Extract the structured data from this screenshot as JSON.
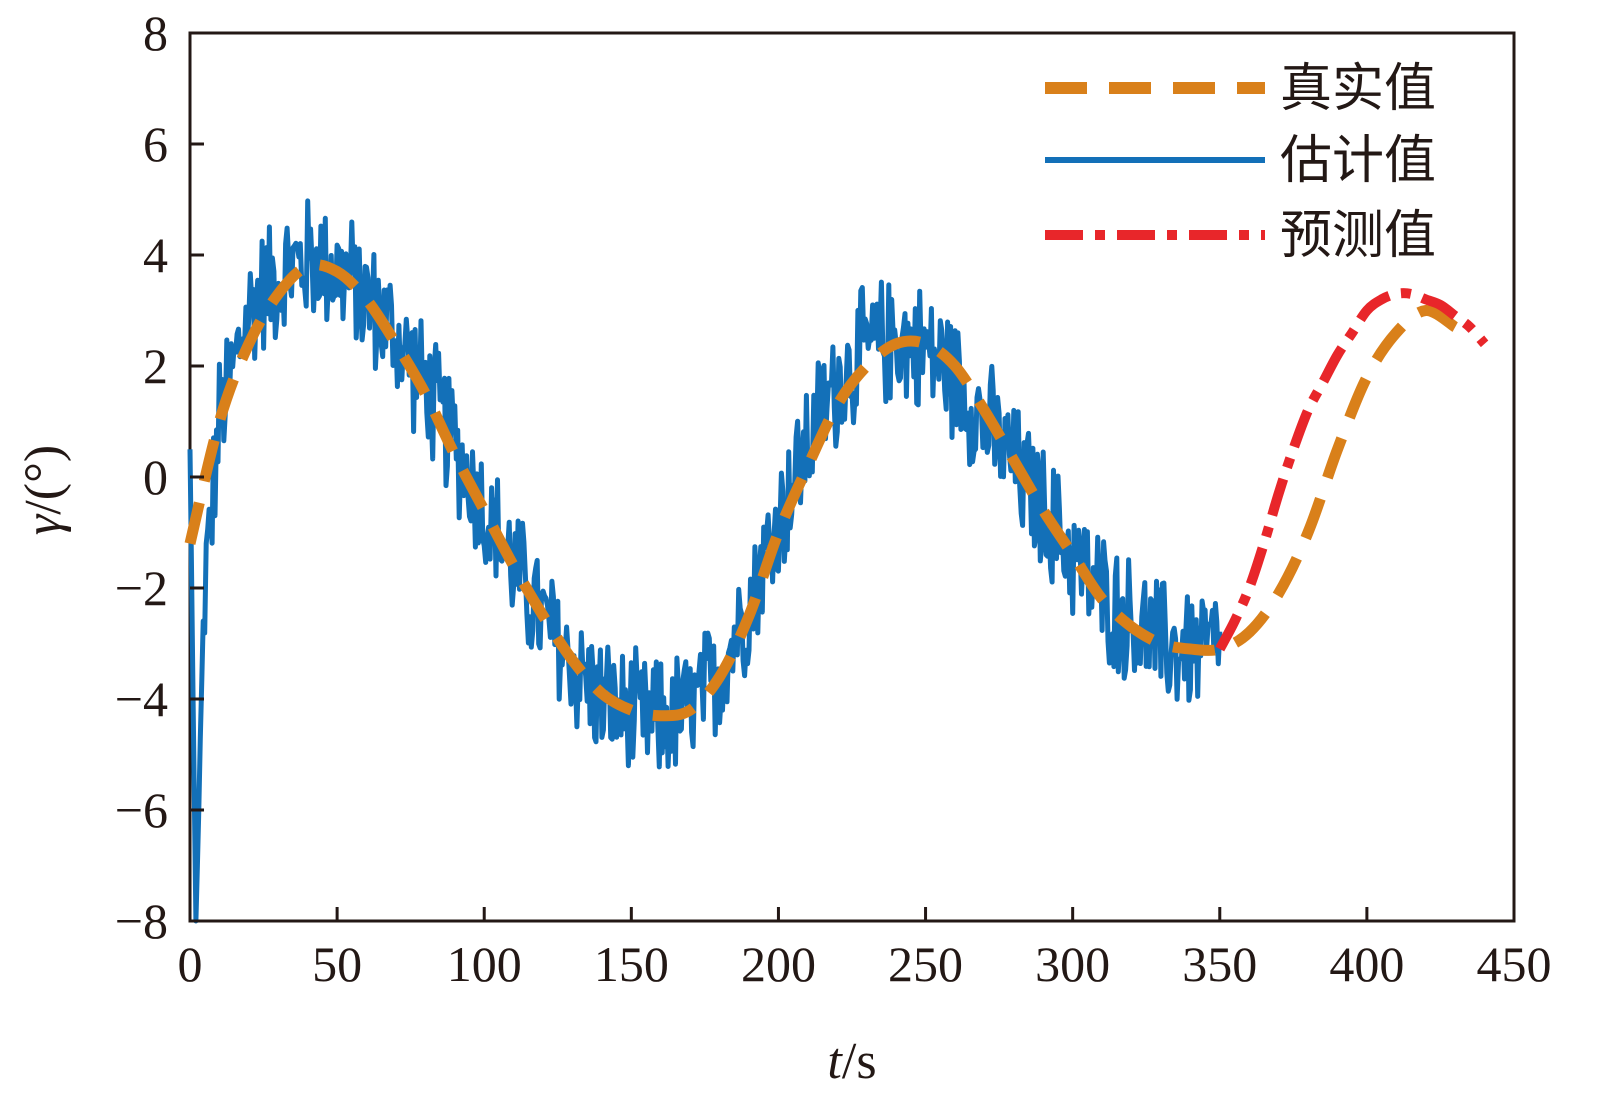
{
  "chart_data": {
    "type": "line",
    "title": "",
    "xlabel_var": "t",
    "xlabel_unit": "/s",
    "ylabel_var": "γ",
    "ylabel_unit": "/(°)",
    "xlim": [
      0,
      450
    ],
    "ylim": [
      -8,
      8
    ],
    "xticks": [
      0,
      50,
      100,
      150,
      200,
      250,
      300,
      350,
      400,
      450
    ],
    "yticks": [
      -8,
      -6,
      -4,
      -2,
      0,
      2,
      4,
      6,
      8
    ],
    "xtick_labels": [
      "0",
      "50",
      "100",
      "150",
      "200",
      "250",
      "300",
      "350",
      "400",
      "450"
    ],
    "ytick_labels": [
      "−8",
      "−6",
      "−4",
      "−2",
      "0",
      "2",
      "4",
      "6",
      "8"
    ],
    "grid": false,
    "legend_position": "top-right",
    "series": [
      {
        "name": "真实值",
        "style": "dashed",
        "color": "#D9801A",
        "x": [
          0,
          10,
          20,
          30,
          40,
          50,
          60,
          70,
          80,
          90,
          100,
          110,
          120,
          130,
          140,
          150,
          160,
          170,
          180,
          190,
          200,
          210,
          220,
          230,
          240,
          250,
          260,
          270,
          280,
          290,
          300,
          310,
          320,
          330,
          340,
          350,
          360,
          370,
          380,
          390,
          400,
          410,
          420,
          430
        ],
        "y": [
          -1.2,
          1.0,
          2.4,
          3.3,
          3.8,
          3.7,
          3.2,
          2.4,
          1.5,
          0.4,
          -0.6,
          -1.6,
          -2.5,
          -3.3,
          -3.9,
          -4.2,
          -4.3,
          -4.2,
          -3.6,
          -2.5,
          -1.0,
          0.2,
          1.3,
          2.0,
          2.4,
          2.4,
          2.0,
          1.2,
          0.3,
          -0.6,
          -1.4,
          -2.2,
          -2.7,
          -3.0,
          -3.1,
          -3.1,
          -2.8,
          -2.1,
          -1.0,
          0.5,
          1.8,
          2.6,
          3.0,
          2.7
        ]
      },
      {
        "name": "估计值",
        "style": "solid",
        "color": "#1370B8",
        "x": [
          0,
          2,
          5,
          10,
          15,
          20,
          25,
          30,
          35,
          40,
          45,
          50,
          55,
          60,
          65,
          70,
          75,
          80,
          85,
          90,
          95,
          100,
          105,
          110,
          115,
          120,
          125,
          130,
          135,
          140,
          145,
          150,
          155,
          160,
          165,
          170,
          175,
          180,
          185,
          190,
          195,
          200,
          205,
          210,
          215,
          220,
          225,
          230,
          235,
          240,
          245,
          250,
          255,
          260,
          265,
          270,
          275,
          280,
          285,
          290,
          295,
          300,
          305,
          310,
          315,
          320,
          325,
          330,
          335,
          340,
          345,
          350
        ],
        "y": [
          0.5,
          -8.0,
          -2.0,
          1.0,
          2.0,
          3.0,
          3.4,
          3.6,
          3.8,
          3.9,
          3.9,
          3.7,
          3.5,
          3.2,
          2.9,
          2.5,
          2.1,
          1.6,
          1.1,
          0.6,
          0.0,
          -0.6,
          -1.1,
          -1.6,
          -2.1,
          -2.6,
          -3.0,
          -3.4,
          -3.7,
          -4.0,
          -4.2,
          -4.3,
          -4.4,
          -4.4,
          -4.3,
          -4.2,
          -3.9,
          -3.5,
          -2.9,
          -2.2,
          -1.5,
          -0.8,
          -0.1,
          0.6,
          1.2,
          1.7,
          2.0,
          2.3,
          2.4,
          2.5,
          2.4,
          2.3,
          2.1,
          1.8,
          1.4,
          1.0,
          0.6,
          0.2,
          -0.2,
          -0.6,
          -1.0,
          -1.4,
          -1.8,
          -2.1,
          -2.4,
          -2.6,
          -2.8,
          -3.0,
          -3.1,
          -3.1,
          -3.1,
          -3.1
        ],
        "noise_amplitude": 1.3
      },
      {
        "name": "预测值",
        "style": "dash-dot",
        "color": "#E8262A",
        "x": [
          350,
          355,
          360,
          365,
          370,
          375,
          380,
          385,
          390,
          395,
          400,
          405,
          410,
          415,
          420,
          425,
          430,
          435,
          440
        ],
        "y": [
          -3.1,
          -2.6,
          -2.0,
          -1.2,
          -0.3,
          0.5,
          1.2,
          1.7,
          2.2,
          2.6,
          3.0,
          3.2,
          3.3,
          3.3,
          3.2,
          3.1,
          2.9,
          2.7,
          2.4
        ]
      }
    ]
  }
}
